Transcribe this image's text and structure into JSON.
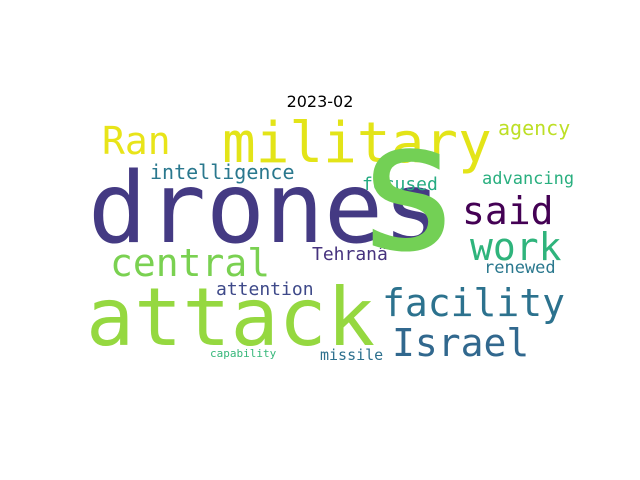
{
  "title": "2023-02",
  "words": [
    {
      "id": "drones",
      "text": "drones",
      "color": "#443a83"
    },
    {
      "id": "s",
      "text": "s",
      "color": "#73d055"
    },
    {
      "id": "attack",
      "text": "attack",
      "color": "#95d840"
    },
    {
      "id": "military",
      "text": "military",
      "color": "#e3e418"
    },
    {
      "id": "ran",
      "text": "Ran",
      "color": "#e8e419"
    },
    {
      "id": "said",
      "text": "said",
      "color": "#440154"
    },
    {
      "id": "work",
      "text": "work",
      "color": "#2fb47c"
    },
    {
      "id": "central",
      "text": "central",
      "color": "#7ad151"
    },
    {
      "id": "facility",
      "text": "facility",
      "color": "#2c728e"
    },
    {
      "id": "israel",
      "text": "Israel",
      "color": "#31688e"
    },
    {
      "id": "intelligence",
      "text": "intelligence",
      "color": "#2a788e"
    },
    {
      "id": "agency",
      "text": "agency",
      "color": "#bddf26"
    },
    {
      "id": "advancing",
      "text": "advancing",
      "color": "#29af7f"
    },
    {
      "id": "focused",
      "text": "focused",
      "color": "#25ab82"
    },
    {
      "id": "tehran",
      "text": "Tehranâ",
      "color": "#46327e"
    },
    {
      "id": "renewed",
      "text": "renewed",
      "color": "#2a788e"
    },
    {
      "id": "attention",
      "text": "attention",
      "color": "#3e4989"
    },
    {
      "id": "missile",
      "text": "missile",
      "color": "#2d708e"
    },
    {
      "id": "capability",
      "text": "capability",
      "color": "#35b779"
    }
  ]
}
